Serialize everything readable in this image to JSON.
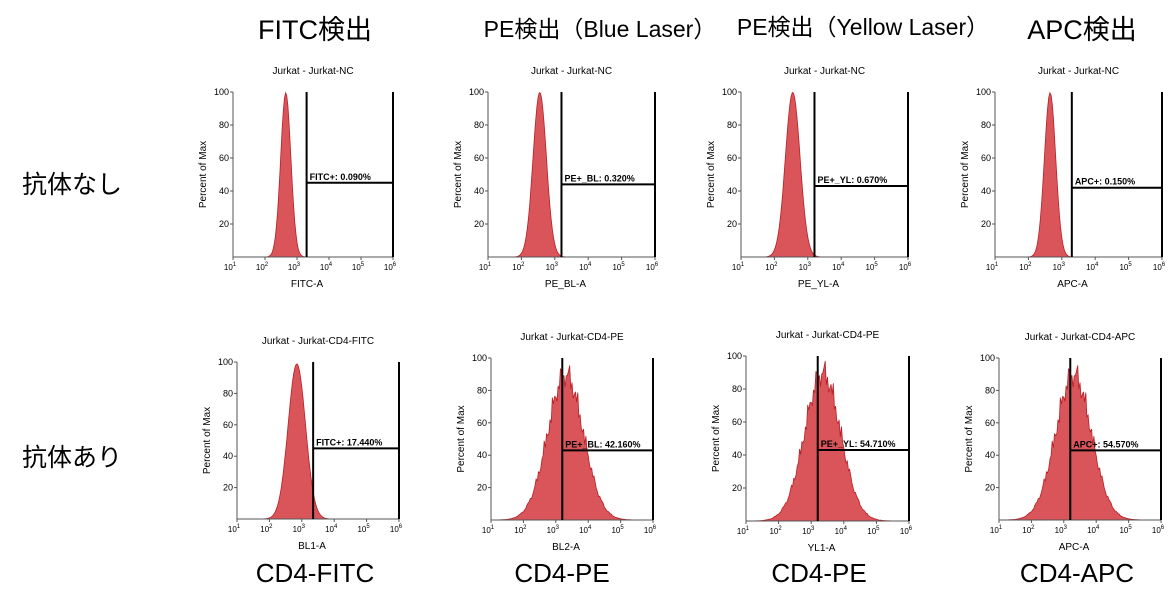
{
  "column_titles": [
    "FITC検出",
    "PE検出（Blue Laser）",
    "PE検出（Yellow Laser）",
    "APC検出"
  ],
  "row_labels": [
    "抗体なし",
    "抗体あり"
  ],
  "bottom_labels": [
    "CD4-FITC",
    "CD4-PE",
    "CD4-PE",
    "CD4-APC"
  ],
  "colors": {
    "fill": "#d9555a",
    "stroke": "#b81f26",
    "gate": "#000000",
    "axis": "#555555"
  },
  "chart_data": [
    {
      "type": "area",
      "title": "Jurkat - Jurkat-NC",
      "xlabel": "FITC-A",
      "ylabel": "Percent of Max",
      "ylim": [
        0,
        100
      ],
      "xlog": [
        1,
        6
      ],
      "y_ticks": [
        20,
        40,
        60,
        80,
        100
      ],
      "peak_log": 2.65,
      "spread": 0.16,
      "gate_start_log": 3.3,
      "gate_line_y": 45,
      "gate_label": "FITC+: 0.090%"
    },
    {
      "type": "area",
      "title": "Jurkat - Jurkat-NC",
      "xlabel": "PE_BL-A",
      "ylabel": "Percent of Max",
      "ylim": [
        0,
        100
      ],
      "xlog": [
        1,
        6
      ],
      "y_ticks": [
        20,
        40,
        60,
        80,
        100
      ],
      "peak_log": 2.55,
      "spread": 0.2,
      "gate_start_log": 3.2,
      "gate_line_y": 44,
      "gate_label": "PE+_BL: 0.320%"
    },
    {
      "type": "area",
      "title": "Jurkat - Jurkat-NC",
      "xlabel": "PE_YL-A",
      "ylabel": "Percent of Max",
      "ylim": [
        0,
        100
      ],
      "xlog": [
        1,
        6
      ],
      "y_ticks": [
        20,
        40,
        60,
        80,
        100
      ],
      "peak_log": 2.55,
      "spread": 0.22,
      "gate_start_log": 3.2,
      "gate_line_y": 43,
      "gate_label": "PE+_YL: 0.670%"
    },
    {
      "type": "area",
      "title": "Jurkat - Jurkat-NC",
      "xlabel": "APC-A",
      "ylabel": "Percent of Max",
      "ylim": [
        0,
        100
      ],
      "xlog": [
        1,
        6
      ],
      "y_ticks": [
        20,
        40,
        60,
        80,
        100
      ],
      "peak_log": 2.65,
      "spread": 0.17,
      "gate_start_log": 3.3,
      "gate_line_y": 42,
      "gate_label": "APC+: 0.150%"
    },
    {
      "type": "area",
      "title": "Jurkat - Jurkat-CD4-FITC",
      "xlabel": "BL1-A",
      "ylabel": "Percent of Max",
      "ylim": [
        0,
        100
      ],
      "xlog": [
        1,
        6
      ],
      "y_ticks": [
        20,
        40,
        60,
        80,
        100
      ],
      "peak_log": 2.85,
      "spread": 0.27,
      "gate_start_log": 3.35,
      "gate_line_y": 45,
      "gate_label": "FITC+: 17.440%"
    },
    {
      "type": "area",
      "title": "Jurkat - Jurkat-CD4-PE",
      "xlabel": "BL2-A",
      "ylabel": "Percent of Max",
      "ylim": [
        0,
        100
      ],
      "xlog": [
        1,
        6
      ],
      "y_ticks": [
        20,
        40,
        60,
        80,
        100
      ],
      "peak_log": 3.3,
      "spread": 0.55,
      "gate_start_log": 3.2,
      "gate_line_y": 43,
      "gate_label": "PE+_BL: 42.160%"
    },
    {
      "type": "area",
      "title": "Jurkat - Jurkat-CD4-PE",
      "xlabel": "YL1-A",
      "ylabel": "Percent of Max",
      "ylim": [
        0,
        100
      ],
      "xlog": [
        1,
        6
      ],
      "y_ticks": [
        20,
        40,
        60,
        80,
        100
      ],
      "peak_log": 3.35,
      "spread": 0.55,
      "gate_start_log": 3.2,
      "gate_line_y": 43,
      "gate_label": "PE+_YL: 54.710%"
    },
    {
      "type": "area",
      "title": "Jurkat - Jurkat-CD4-APC",
      "xlabel": "APC-A",
      "ylabel": "Percent of Max",
      "ylim": [
        0,
        100
      ],
      "xlog": [
        1,
        6
      ],
      "y_ticks": [
        20,
        40,
        60,
        80,
        100
      ],
      "peak_log": 3.3,
      "spread": 0.55,
      "gate_start_log": 3.2,
      "gate_line_y": 43,
      "gate_label": "APC+: 54.570%"
    }
  ]
}
